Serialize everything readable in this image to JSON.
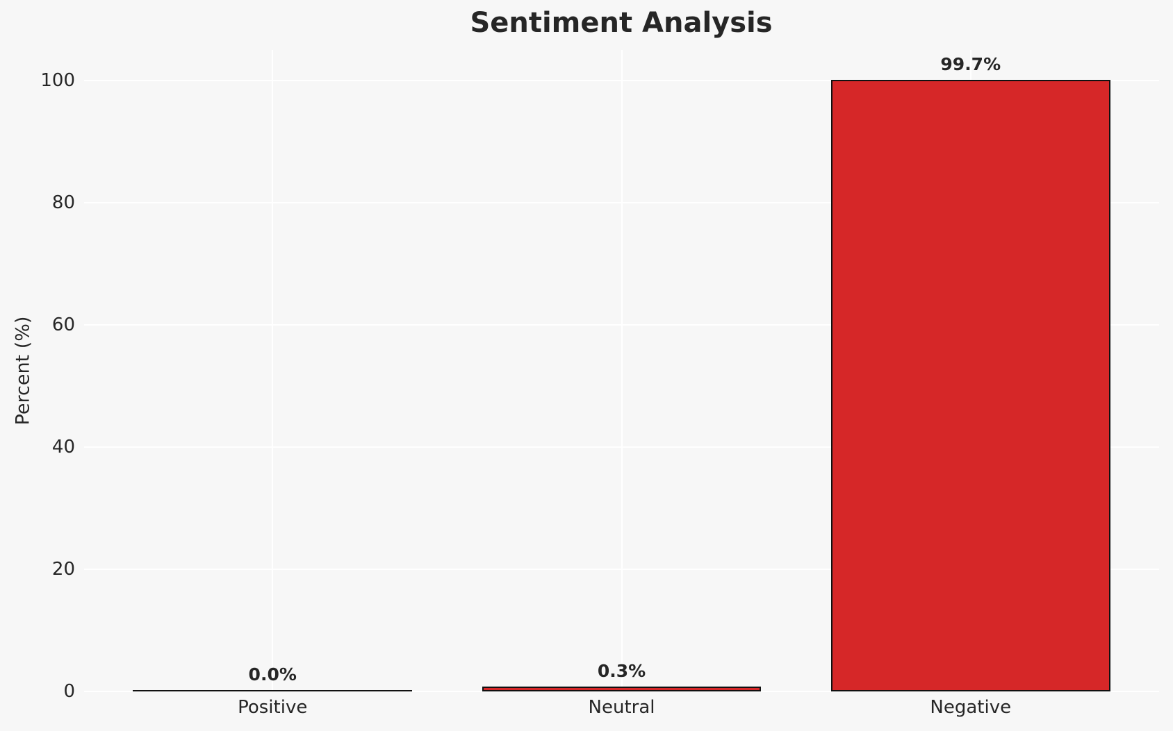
{
  "colors": {
    "figure_background": "#f7f7f7",
    "grid": "#ffffff",
    "text": "#262626",
    "negative_bar_fill": "#d62728",
    "bar_edge": "#111111"
  },
  "chart_data": {
    "type": "bar",
    "title": "Sentiment Analysis",
    "xlabel": "",
    "ylabel": "Percent (%)",
    "categories": [
      "Positive",
      "Neutral",
      "Negative"
    ],
    "values": [
      0.0,
      0.3,
      99.7
    ],
    "value_labels": [
      "0.0%",
      "0.3%",
      "99.7%"
    ],
    "yticks": [
      0,
      20,
      40,
      60,
      80,
      100
    ],
    "ylim": [
      0,
      105
    ],
    "grid": "on",
    "grid_style": "white horizontal and vertical gridlines on light gray axes background",
    "legend": "none",
    "bar_colors": [
      "#d62728",
      "#d62728",
      "#d62728"
    ],
    "bar_edge_color": "#111111"
  }
}
